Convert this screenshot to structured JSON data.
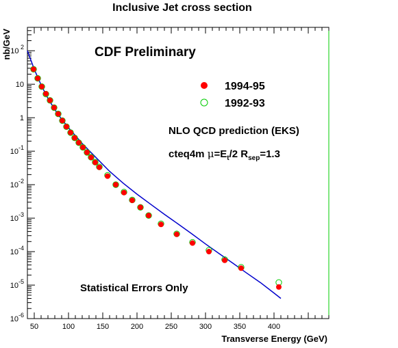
{
  "chart_data": {
    "type": "scatter",
    "title": "Inclusive Jet cross section",
    "xlabel": "Transverse Energy  (GeV)",
    "ylabel": "nb/GeV",
    "xlim": [
      40,
      480
    ],
    "ylim": [
      1e-06,
      500
    ],
    "yscale": "log",
    "x_ticks": [
      50,
      100,
      150,
      200,
      250,
      300,
      350,
      400
    ],
    "y_ticks": [
      {
        "value": 1e-06,
        "base": "10",
        "exp": "-6"
      },
      {
        "value": 1e-05,
        "base": "10",
        "exp": "-5"
      },
      {
        "value": 0.0001,
        "base": "10",
        "exp": "-4"
      },
      {
        "value": 0.001,
        "base": "10",
        "exp": "-3"
      },
      {
        "value": 0.01,
        "base": "10",
        "exp": "-2"
      },
      {
        "value": 0.1,
        "base": "10",
        "exp": "-1"
      },
      {
        "value": 1,
        "base": "1",
        "exp": ""
      },
      {
        "value": 10,
        "base": "10",
        "exp": ""
      },
      {
        "value": 100,
        "base": "10",
        "exp": " 2"
      }
    ],
    "annotations": {
      "preliminary": "CDF Preliminary",
      "nlo": "NLO QCD prediction (EKS)",
      "params_a": "cteq4m  ",
      "params_mu": "μ",
      "params_b": "=E",
      "params_b_sub": "t",
      "params_c": "/2  R",
      "params_c_sub": "sep",
      "params_d": "=1.3",
      "errors": "Statistical Errors Only"
    },
    "legend_position": "top-right",
    "series": [
      {
        "name": "1994-95",
        "marker": "filled-circle",
        "color": "#ff0000",
        "x": [
          49,
          55,
          61,
          67,
          73,
          79,
          85,
          91,
          97,
          103,
          109,
          115,
          121,
          127,
          133,
          139,
          145,
          157,
          169,
          181,
          193,
          205,
          217,
          235,
          258,
          281,
          305,
          328,
          352,
          407
        ],
        "y": [
          28,
          15,
          8.5,
          5.2,
          3.3,
          2.0,
          1.3,
          0.82,
          0.54,
          0.36,
          0.25,
          0.18,
          0.13,
          0.092,
          0.065,
          0.046,
          0.033,
          0.018,
          0.01,
          0.0058,
          0.0034,
          0.0021,
          0.0012,
          0.00065,
          0.00033,
          0.00018,
          0.0001,
          5.5e-05,
          3.2e-05,
          8.8e-06
        ]
      },
      {
        "name": "1992-93",
        "marker": "open-circle",
        "color": "#00cc00",
        "x": [
          49,
          55,
          61,
          67,
          73,
          79,
          85,
          91,
          97,
          103,
          109,
          115,
          121,
          127,
          133,
          139,
          145,
          157,
          169,
          181,
          193,
          205,
          217,
          235,
          258,
          281,
          305,
          328,
          352,
          407
        ],
        "y": [
          28,
          15,
          8.5,
          5.1,
          3.3,
          2.0,
          1.3,
          0.82,
          0.54,
          0.36,
          0.25,
          0.18,
          0.13,
          0.092,
          0.066,
          0.047,
          0.034,
          0.019,
          0.01,
          0.006,
          0.0035,
          0.0021,
          0.0012,
          0.00068,
          0.00034,
          0.00019,
          0.00011,
          5.8e-05,
          3.4e-05,
          1.2e-05
        ]
      },
      {
        "name": "NLO QCD prediction (EKS)",
        "type": "line",
        "color": "#0000cc",
        "x": [
          40,
          50,
          60,
          70,
          80,
          90,
          100,
          120,
          140,
          160,
          180,
          200,
          220,
          240,
          260,
          280,
          300,
          320,
          340,
          360,
          380,
          400,
          410
        ],
        "y": [
          100,
          28,
          9.5,
          3.8,
          1.75,
          0.9,
          0.5,
          0.17,
          0.065,
          0.025,
          0.011,
          0.0052,
          0.0026,
          0.0013,
          0.00067,
          0.00034,
          0.00017,
          8.7e-05,
          4.5e-05,
          2.3e-05,
          1.2e-05,
          5.8e-06,
          4e-06
        ]
      }
    ]
  }
}
